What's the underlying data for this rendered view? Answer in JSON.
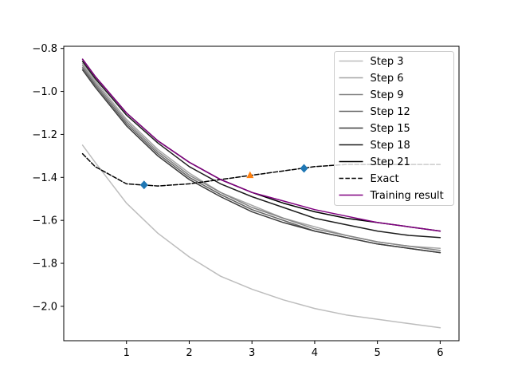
{
  "chart_data": {
    "type": "line",
    "xlim": [
      0.0,
      6.3
    ],
    "ylim": [
      -2.16,
      -0.79
    ],
    "xticks": [
      1,
      2,
      3,
      4,
      5,
      6
    ],
    "xtick_labels": [
      "1",
      "2",
      "3",
      "4",
      "5",
      "6"
    ],
    "yticks": [
      -2.0,
      -1.8,
      -1.6,
      -1.4,
      -1.2,
      -1.0,
      -0.8
    ],
    "ytick_labels": [
      "−2.0",
      "−1.8",
      "−1.6",
      "−1.4",
      "−1.2",
      "−1.0",
      "−0.8"
    ],
    "grid": false,
    "legend_position": "upper-right",
    "x": [
      0.3,
      0.5,
      1.0,
      1.5,
      2.0,
      2.5,
      3.0,
      3.5,
      4.0,
      4.5,
      5.0,
      5.5,
      6.0
    ],
    "series": [
      {
        "name": "Step 3",
        "color": "#bdbdbd",
        "style": "solid",
        "values": [
          -1.25,
          -1.33,
          -1.52,
          -1.66,
          -1.77,
          -1.86,
          -1.92,
          -1.97,
          -2.01,
          -2.04,
          -2.06,
          -2.08,
          -2.1
        ]
      },
      {
        "name": "Step 6",
        "color": "#a6a6a6",
        "style": "solid",
        "values": [
          -0.87,
          -0.95,
          -1.13,
          -1.27,
          -1.38,
          -1.47,
          -1.53,
          -1.59,
          -1.63,
          -1.67,
          -1.7,
          -1.72,
          -1.73
        ]
      },
      {
        "name": "Step 9",
        "color": "#858585",
        "style": "solid",
        "values": [
          -0.88,
          -0.96,
          -1.14,
          -1.28,
          -1.39,
          -1.47,
          -1.54,
          -1.59,
          -1.64,
          -1.67,
          -1.7,
          -1.72,
          -1.74
        ]
      },
      {
        "name": "Step 12",
        "color": "#636363",
        "style": "solid",
        "values": [
          -0.89,
          -0.97,
          -1.15,
          -1.29,
          -1.4,
          -1.48,
          -1.55,
          -1.6,
          -1.65,
          -1.68,
          -1.71,
          -1.73,
          -1.75
        ]
      },
      {
        "name": "Step 15",
        "color": "#3d3d3d",
        "style": "solid",
        "values": [
          -0.9,
          -0.98,
          -1.16,
          -1.3,
          -1.41,
          -1.49,
          -1.56,
          -1.61,
          -1.65,
          -1.68,
          -1.71,
          -1.73,
          -1.75
        ]
      },
      {
        "name": "Step 18",
        "color": "#1c1c1c",
        "style": "solid",
        "values": [
          -0.86,
          -0.94,
          -1.11,
          -1.24,
          -1.35,
          -1.43,
          -1.49,
          -1.54,
          -1.59,
          -1.62,
          -1.65,
          -1.67,
          -1.68
        ]
      },
      {
        "name": "Step 21",
        "color": "#000000",
        "style": "solid",
        "values": [
          -0.85,
          -0.93,
          -1.1,
          -1.23,
          -1.33,
          -1.41,
          -1.47,
          -1.52,
          -1.56,
          -1.59,
          -1.61,
          -1.63,
          -1.65
        ]
      },
      {
        "name": "Exact",
        "color": "#000000",
        "style": "dashed",
        "values": [
          -1.29,
          -1.35,
          -1.43,
          -1.44,
          -1.43,
          -1.41,
          -1.39,
          -1.37,
          -1.35,
          -1.34,
          -1.34,
          -1.34,
          -1.34
        ]
      },
      {
        "name": "Training result",
        "color": "#800080",
        "style": "solid",
        "values": [
          -0.85,
          -0.93,
          -1.1,
          -1.23,
          -1.33,
          -1.41,
          -1.47,
          -1.51,
          -1.55,
          -1.58,
          -1.61,
          -1.63,
          -1.65
        ]
      }
    ],
    "markers": [
      {
        "x": 1.28,
        "y": -1.435,
        "shape": "diamond",
        "color": "#1f77b4"
      },
      {
        "x": 3.83,
        "y": -1.358,
        "shape": "diamond",
        "color": "#1f77b4"
      },
      {
        "x": 2.97,
        "y": -1.39,
        "shape": "triangle",
        "color": "#ff7f0e"
      }
    ]
  }
}
